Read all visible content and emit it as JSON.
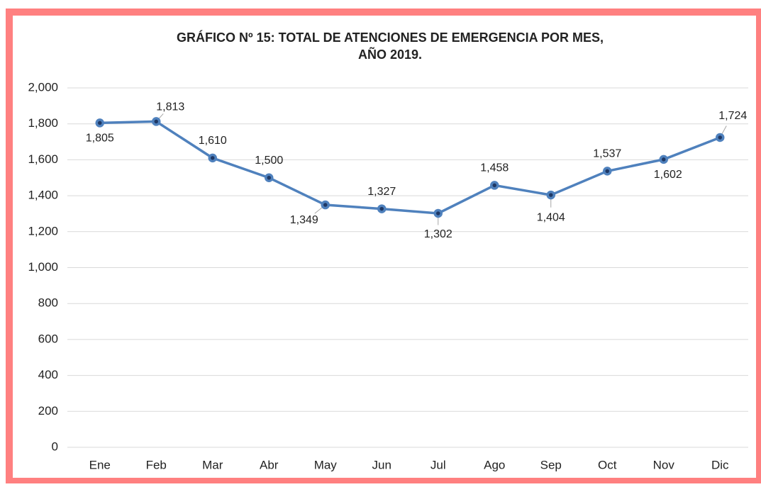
{
  "chart_data": {
    "type": "line",
    "title": [
      "GRÁFICO Nº 15: TOTAL DE ATENCIONES DE EMERGENCIA POR MES,",
      "AÑO 2019."
    ],
    "categories": [
      "Ene",
      "Feb",
      "Mar",
      "Abr",
      "May",
      "Jun",
      "Jul",
      "Ago",
      "Sep",
      "Oct",
      "Nov",
      "Dic"
    ],
    "values": [
      1805,
      1813,
      1610,
      1500,
      1349,
      1327,
      1302,
      1458,
      1404,
      1537,
      1602,
      1724
    ],
    "value_labels": [
      "1,805",
      "1,813",
      "1,610",
      "1,500",
      "1,349",
      "1,327",
      "1,302",
      "1,458",
      "1,404",
      "1,537",
      "1,602",
      "1,724"
    ],
    "color": "#4f81bd",
    "ylim": [
      0,
      2000
    ],
    "yticks": [
      0,
      200,
      400,
      600,
      800,
      {
        "value": 1000,
        "label": "1,000"
      },
      {
        "value": 1200,
        "label": "1,200"
      },
      {
        "value": 1400,
        "label": "1,400"
      },
      {
        "value": 1600,
        "label": "1,600"
      },
      {
        "value": 1800,
        "label": "1,800"
      },
      {
        "value": 2000,
        "label": "2,000"
      }
    ],
    "grid": true
  }
}
